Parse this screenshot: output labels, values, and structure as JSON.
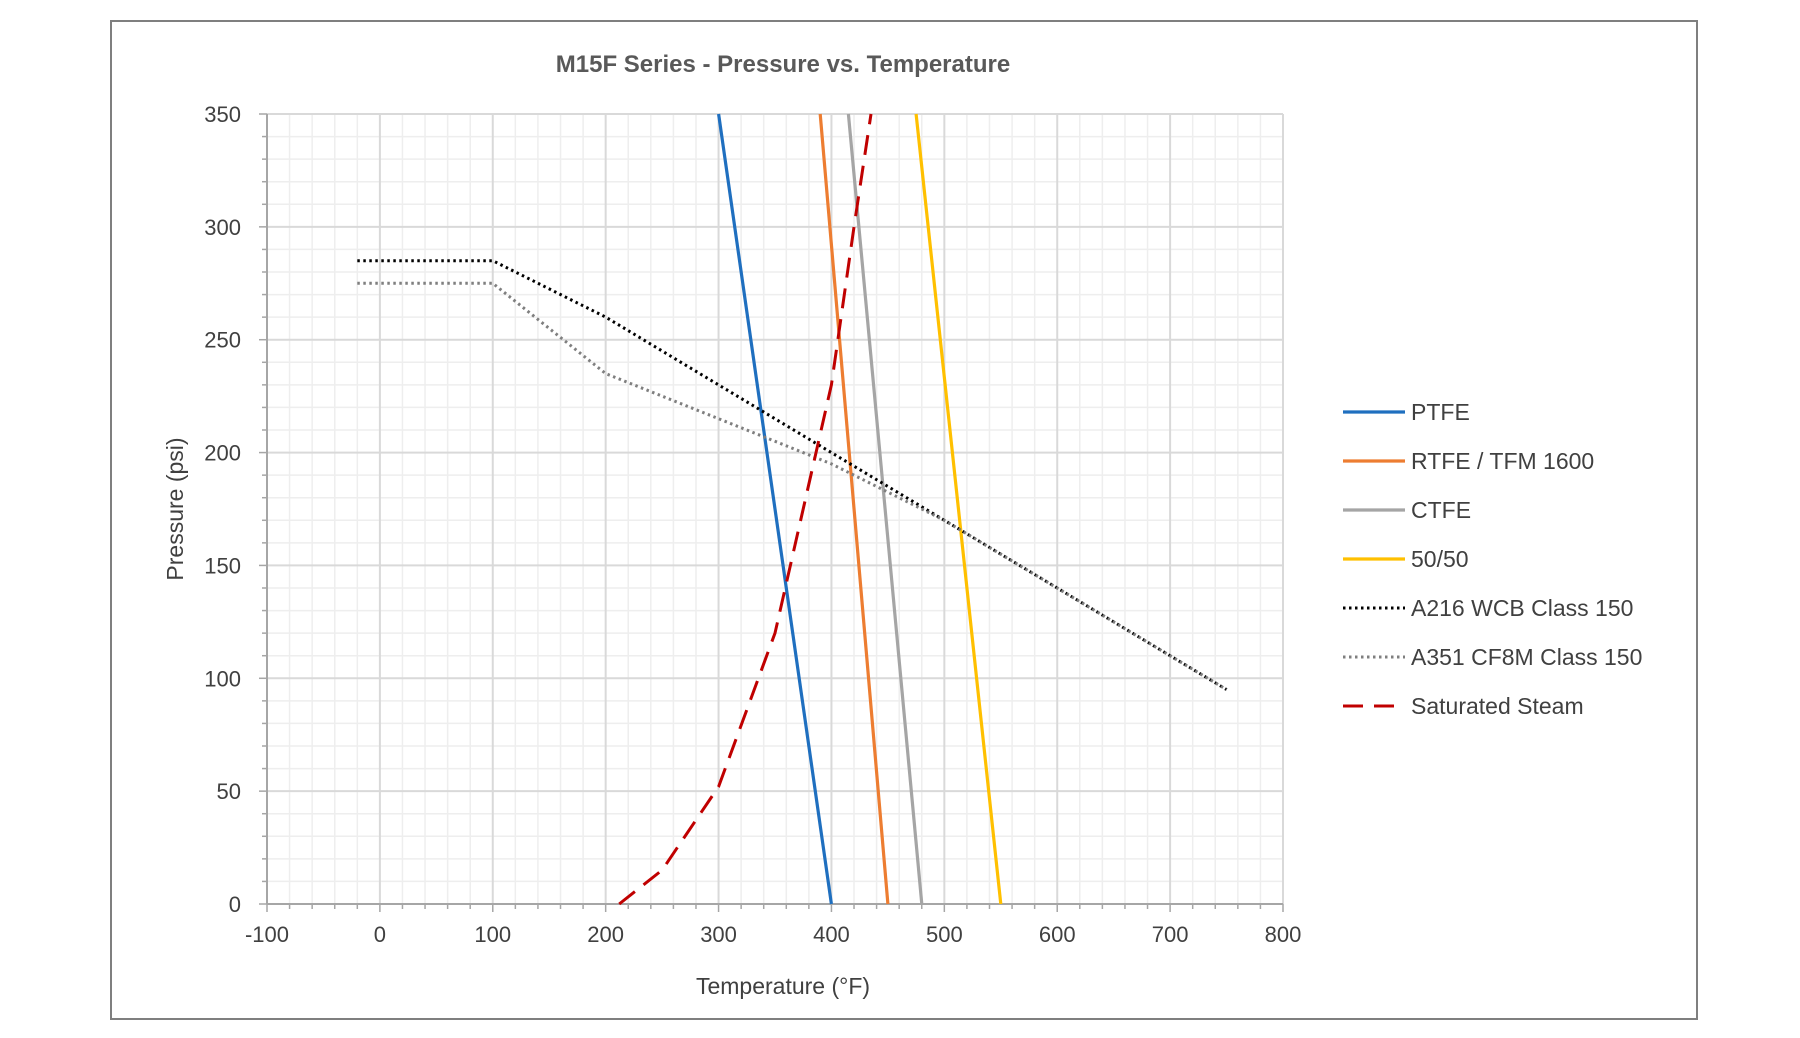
{
  "chart_data": {
    "type": "line",
    "title": "M15F Series - Pressure vs. Temperature",
    "xlabel": "Temperature (°F)",
    "ylabel": "Pressure (psi)",
    "xlim": [
      -100,
      800
    ],
    "ylim": [
      0,
      350
    ],
    "x_ticks": [
      "-100",
      "0",
      "100",
      "200",
      "300",
      "400",
      "500",
      "600",
      "700",
      "800"
    ],
    "y_ticks": [
      "0",
      "50",
      "100",
      "150",
      "200",
      "250",
      "300",
      "350"
    ],
    "grid": "major and minor",
    "legend_position": "right",
    "series": [
      {
        "name": "PTFE",
        "color": "#1f6fbf",
        "style": "solid",
        "points": [
          [
            400,
            0
          ],
          [
            300,
            350
          ]
        ]
      },
      {
        "name": "RTFE / TFM 1600",
        "color": "#ed7d31",
        "style": "solid",
        "points": [
          [
            450,
            0
          ],
          [
            390,
            350
          ]
        ]
      },
      {
        "name": "CTFE",
        "color": "#a5a5a5",
        "style": "solid",
        "points": [
          [
            480,
            0
          ],
          [
            415,
            350
          ]
        ]
      },
      {
        "name": "50/50",
        "color": "#ffc000",
        "style": "solid",
        "points": [
          [
            550,
            0
          ],
          [
            475,
            350
          ]
        ]
      },
      {
        "name": "A216 WCB Class 150",
        "color": "#000000",
        "style": "dotted",
        "points": [
          [
            -20,
            285
          ],
          [
            100,
            285
          ],
          [
            200,
            260
          ],
          [
            300,
            230
          ],
          [
            400,
            200
          ],
          [
            500,
            170
          ],
          [
            600,
            140
          ],
          [
            650,
            125
          ],
          [
            700,
            110
          ],
          [
            750,
            95
          ]
        ]
      },
      {
        "name": "A351 CF8M Class 150",
        "color": "#7f7f7f",
        "style": "dotted",
        "points": [
          [
            -20,
            275
          ],
          [
            100,
            275
          ],
          [
            200,
            235
          ],
          [
            300,
            215
          ],
          [
            400,
            195
          ],
          [
            500,
            170
          ],
          [
            600,
            140
          ],
          [
            650,
            125
          ],
          [
            700,
            110
          ],
          [
            750,
            95
          ]
        ]
      },
      {
        "name": "Saturated Steam",
        "color": "#c00000",
        "style": "dashed",
        "points": [
          [
            212,
            0
          ],
          [
            250,
            15
          ],
          [
            300,
            52
          ],
          [
            350,
            120
          ],
          [
            400,
            230
          ],
          [
            420,
            300
          ],
          [
            435,
            350
          ]
        ]
      }
    ]
  }
}
